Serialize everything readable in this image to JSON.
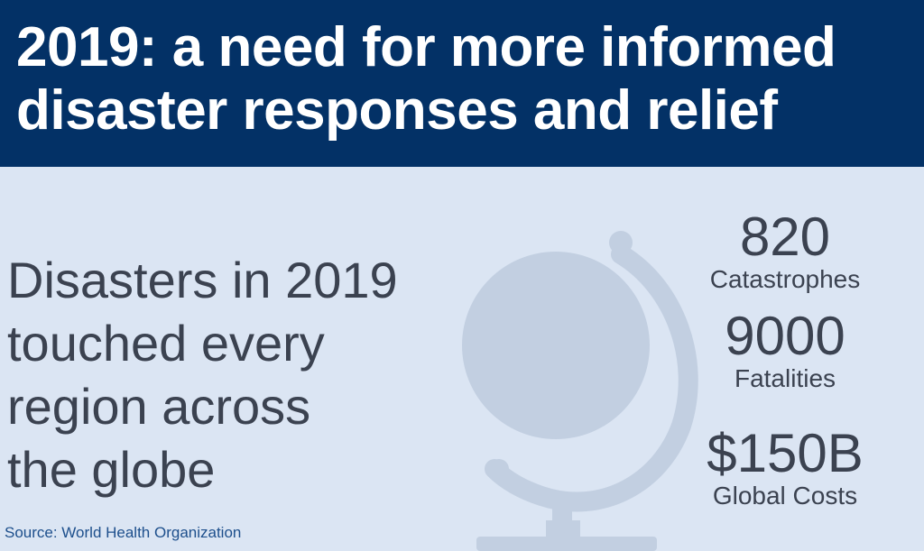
{
  "header": {
    "title_lines": [
      "2019: a need for more informed",
      "disaster responses and relief"
    ]
  },
  "main": {
    "headline_lines": [
      "Disasters in 2019",
      "touched every",
      "region across",
      "the globe"
    ],
    "illustration": "globe-icon"
  },
  "stats": [
    {
      "value": "820",
      "label": "Catastrophes"
    },
    {
      "value": "9000",
      "label": "Fatalities"
    },
    {
      "value": "$150B",
      "label": "Global Costs"
    }
  ],
  "footer": {
    "source": "Source: World Health Organization"
  },
  "colors": {
    "header_background": "#033166",
    "header_text": "#ffffff",
    "page_background": "#dbe5f3",
    "body_text": "#3b4250",
    "globe": "#c2cfe1",
    "source_text": "#1d4f8c"
  }
}
